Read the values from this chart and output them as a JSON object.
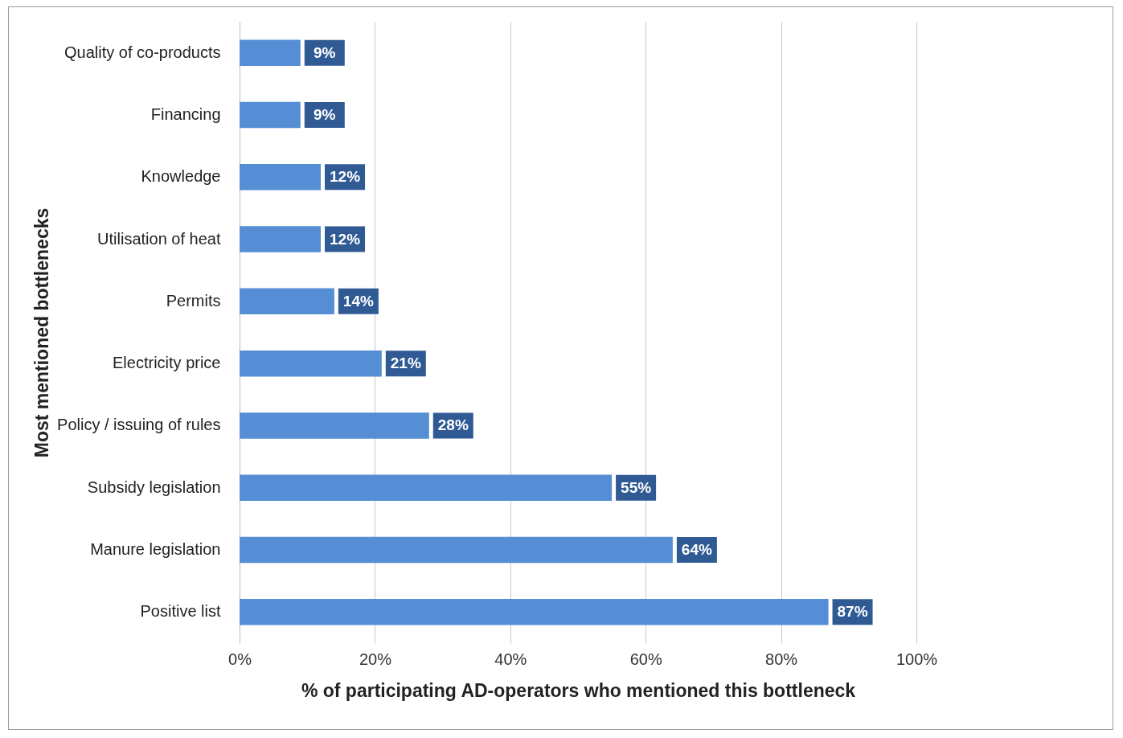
{
  "chart_data": {
    "type": "bar",
    "orientation": "horizontal",
    "xlabel": "% of participating AD-operators who mentioned this bottleneck",
    "ylabel": "Most mentioned bottlenecks",
    "categories": [
      "Quality of co-products",
      "Financing",
      "Knowledge",
      "Utilisation of heat",
      "Permits",
      "Electricity price",
      "Policy / issuing of rules",
      "Subsidy legislation",
      "Manure legislation",
      "Positive list"
    ],
    "values": [
      9,
      9,
      12,
      12,
      14,
      21,
      28,
      55,
      64,
      87
    ],
    "value_labels": [
      "9%",
      "9%",
      "12%",
      "12%",
      "14%",
      "21%",
      "28%",
      "55%",
      "64%",
      "87%"
    ],
    "color": "#558ed5",
    "xlim": [
      0,
      100
    ],
    "xticks": [
      {
        "value": 0,
        "label": "0%"
      },
      {
        "value": 20,
        "label": "20%"
      },
      {
        "value": 40,
        "label": "40%"
      },
      {
        "value": 60,
        "label": "60%"
      },
      {
        "value": 80,
        "label": "80%"
      },
      {
        "value": 100,
        "label": "100%"
      }
    ],
    "grid": "x"
  }
}
